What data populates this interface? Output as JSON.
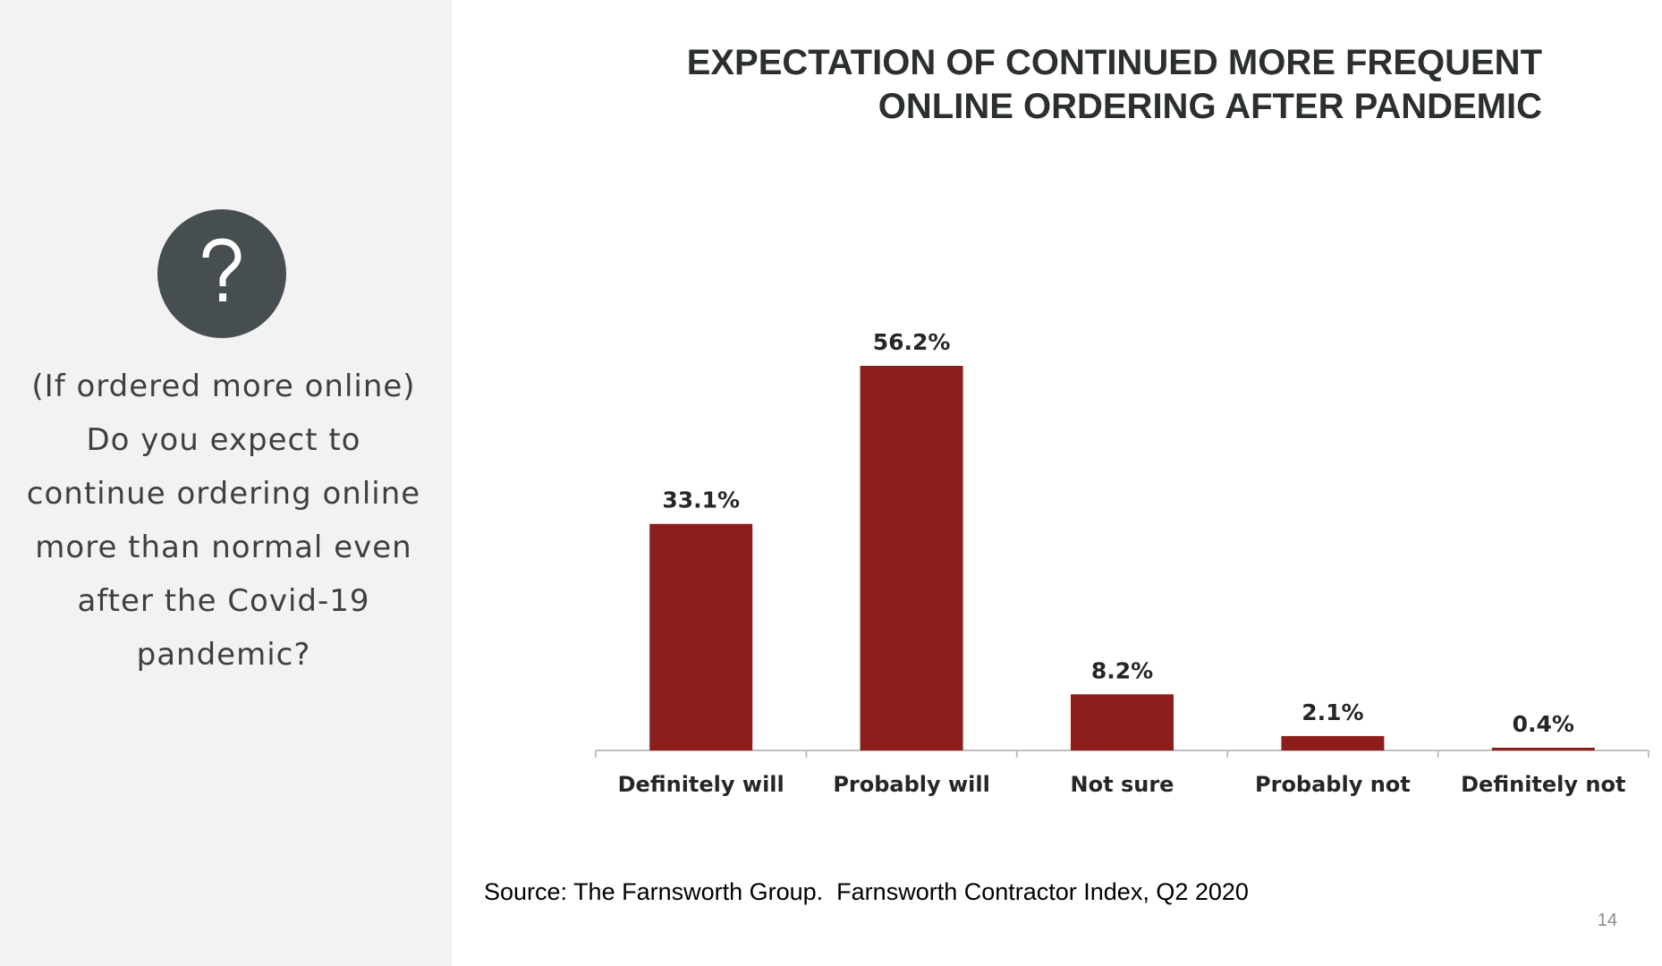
{
  "sidebar": {
    "icon": "question-mark-icon",
    "icon_glyph": "?",
    "question_lines": [
      "(If ordered more online)",
      "Do you expect to",
      "continue ordering online",
      "more than normal even",
      "after the Covid-19",
      "pandemic?"
    ]
  },
  "chart_data": {
    "type": "bar",
    "title_lines": [
      "EXPECTATION OF CONTINUED MORE FREQUENT",
      "ONLINE ORDERING AFTER PANDEMIC"
    ],
    "categories": [
      "Definitely will",
      "Probably will",
      "Not sure",
      "Probably not",
      "Definitely not"
    ],
    "values": [
      33.1,
      56.2,
      8.2,
      2.1,
      0.4
    ],
    "labels": [
      "33.1%",
      "56.2%",
      "8.2%",
      "2.1%",
      "0.4%"
    ],
    "xlabel": "",
    "ylabel": "",
    "ylim": [
      0,
      60
    ],
    "grid": false,
    "legend": "none",
    "bar_color": "#8b1e1a"
  },
  "source": "Source: The Farnsworth Group.  Farnsworth Contractor Index, Q2 2020",
  "page_number": "14"
}
